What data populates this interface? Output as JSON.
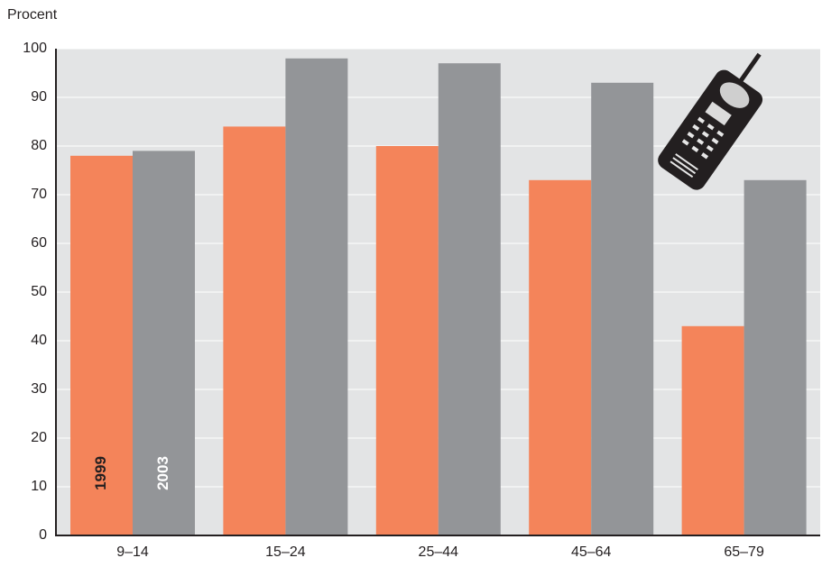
{
  "chart_data": {
    "type": "bar",
    "y_label": "Procent",
    "categories": [
      "9–14",
      "15–24",
      "25–44",
      "45–64",
      "65–79"
    ],
    "series": [
      {
        "name": "1999",
        "color": "#f4845a",
        "values": [
          78,
          84,
          80,
          73,
          43
        ]
      },
      {
        "name": "2003",
        "color": "#939598",
        "values": [
          79,
          98,
          97,
          93,
          73
        ]
      }
    ],
    "ylim": [
      0,
      100
    ],
    "yticks": [
      0,
      10,
      20,
      30,
      40,
      50,
      60,
      70,
      80,
      90,
      100
    ],
    "grid": true
  }
}
